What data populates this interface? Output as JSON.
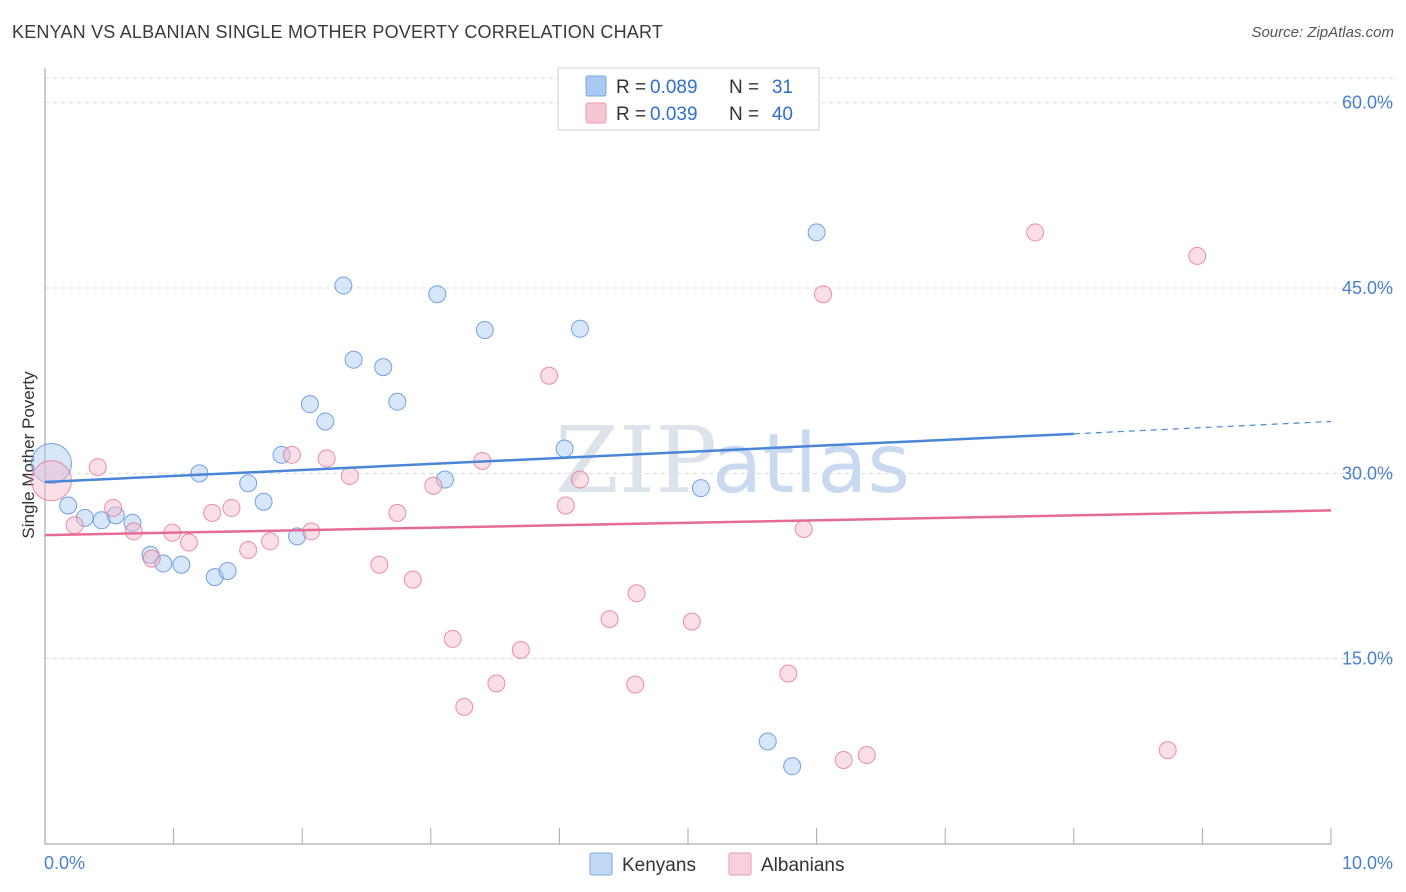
{
  "header": {
    "title": "KENYAN VS ALBANIAN SINGLE MOTHER POVERTY CORRELATION CHART",
    "source": "Source: ZipAtlas.com"
  },
  "watermark": {
    "zip": "ZIP",
    "atlas": "atlas"
  },
  "legend": {
    "rows": [
      {
        "r_label": "R =",
        "r_value": "0.089",
        "n_label": "N =",
        "n_value": "31",
        "color": "#a9c8f2"
      },
      {
        "r_label": "R =",
        "r_value": "0.039",
        "n_label": "N =",
        "n_value": "40",
        "color": "#f6b8c9"
      }
    ]
  },
  "bottom_legend": {
    "items": [
      "Kenyans",
      "Albanians"
    ]
  },
  "chart_data": {
    "type": "scatter",
    "ylabel": "Single Mother Poverty",
    "xlabel": "",
    "xlim": [
      0,
      10
    ],
    "ylim": [
      0,
      62
    ],
    "x_tick_labels": [
      "0.0%",
      "10.0%"
    ],
    "y_ticks": [
      15,
      30,
      45,
      60
    ],
    "y_tick_labels": [
      "15.0%",
      "30.0%",
      "45.0%",
      "60.0%"
    ],
    "grid": true,
    "series": [
      {
        "name": "Kenyans",
        "color": "#4a86d8",
        "fill": "#a9c8f2",
        "trend": {
          "x0": 0,
          "y0": 29.3,
          "x1": 8.0,
          "y1": 33.2,
          "dash_x1": 10.0,
          "dash_y1": 34.2
        },
        "points": [
          {
            "x": 0.05,
            "y": 30.8,
            "big": true
          },
          {
            "x": 0.18,
            "y": 27.4
          },
          {
            "x": 0.31,
            "y": 26.4
          },
          {
            "x": 0.44,
            "y": 26.2
          },
          {
            "x": 0.55,
            "y": 26.6
          },
          {
            "x": 0.68,
            "y": 26.0
          },
          {
            "x": 0.82,
            "y": 23.4
          },
          {
            "x": 0.92,
            "y": 22.7
          },
          {
            "x": 1.06,
            "y": 22.6
          },
          {
            "x": 1.2,
            "y": 30.0
          },
          {
            "x": 1.32,
            "y": 21.6
          },
          {
            "x": 1.42,
            "y": 22.1
          },
          {
            "x": 1.58,
            "y": 29.2
          },
          {
            "x": 1.7,
            "y": 27.7
          },
          {
            "x": 1.84,
            "y": 31.5
          },
          {
            "x": 1.96,
            "y": 24.9
          },
          {
            "x": 2.06,
            "y": 35.6
          },
          {
            "x": 2.18,
            "y": 34.2
          },
          {
            "x": 2.32,
            "y": 45.2
          },
          {
            "x": 2.4,
            "y": 39.2
          },
          {
            "x": 2.63,
            "y": 38.6
          },
          {
            "x": 2.74,
            "y": 35.8
          },
          {
            "x": 3.05,
            "y": 44.5
          },
          {
            "x": 3.11,
            "y": 29.5
          },
          {
            "x": 3.42,
            "y": 41.6
          },
          {
            "x": 4.04,
            "y": 32.0
          },
          {
            "x": 4.16,
            "y": 41.7
          },
          {
            "x": 5.1,
            "y": 28.8
          },
          {
            "x": 5.62,
            "y": 8.3
          },
          {
            "x": 5.81,
            "y": 6.3
          },
          {
            "x": 6.0,
            "y": 49.5
          }
        ]
      },
      {
        "name": "Albanians",
        "color": "#e56b95",
        "fill": "#f6b8c9",
        "trend": {
          "x0": 0,
          "y0": 25.0,
          "x1": 10.0,
          "y1": 27.0
        },
        "points": [
          {
            "x": 0.05,
            "y": 29.4,
            "big": true
          },
          {
            "x": 0.23,
            "y": 25.8
          },
          {
            "x": 0.41,
            "y": 30.5
          },
          {
            "x": 0.53,
            "y": 27.2
          },
          {
            "x": 0.69,
            "y": 25.3
          },
          {
            "x": 0.83,
            "y": 23.1
          },
          {
            "x": 0.99,
            "y": 25.2
          },
          {
            "x": 1.12,
            "y": 24.4
          },
          {
            "x": 1.3,
            "y": 26.8
          },
          {
            "x": 1.45,
            "y": 27.2
          },
          {
            "x": 1.58,
            "y": 23.8
          },
          {
            "x": 1.75,
            "y": 24.5
          },
          {
            "x": 1.92,
            "y": 31.5
          },
          {
            "x": 2.07,
            "y": 25.3
          },
          {
            "x": 2.19,
            "y": 31.2
          },
          {
            "x": 2.37,
            "y": 29.8
          },
          {
            "x": 2.6,
            "y": 22.6
          },
          {
            "x": 2.74,
            "y": 26.8
          },
          {
            "x": 2.86,
            "y": 21.4
          },
          {
            "x": 3.02,
            "y": 29.0
          },
          {
            "x": 3.17,
            "y": 16.6
          },
          {
            "x": 3.26,
            "y": 11.1
          },
          {
            "x": 3.4,
            "y": 31.0
          },
          {
            "x": 3.51,
            "y": 13.0
          },
          {
            "x": 3.7,
            "y": 15.7
          },
          {
            "x": 3.92,
            "y": 37.9
          },
          {
            "x": 4.05,
            "y": 27.4
          },
          {
            "x": 4.16,
            "y": 29.5
          },
          {
            "x": 4.39,
            "y": 18.2
          },
          {
            "x": 4.59,
            "y": 12.9
          },
          {
            "x": 5.03,
            "y": 18.0
          },
          {
            "x": 5.78,
            "y": 13.8
          },
          {
            "x": 5.9,
            "y": 25.5
          },
          {
            "x": 6.05,
            "y": 44.5
          },
          {
            "x": 6.21,
            "y": 6.8
          },
          {
            "x": 6.39,
            "y": 7.2
          },
          {
            "x": 7.7,
            "y": 49.5
          },
          {
            "x": 8.73,
            "y": 7.6
          },
          {
            "x": 8.96,
            "y": 47.6
          },
          {
            "x": 4.6,
            "y": 20.3
          }
        ]
      }
    ]
  }
}
